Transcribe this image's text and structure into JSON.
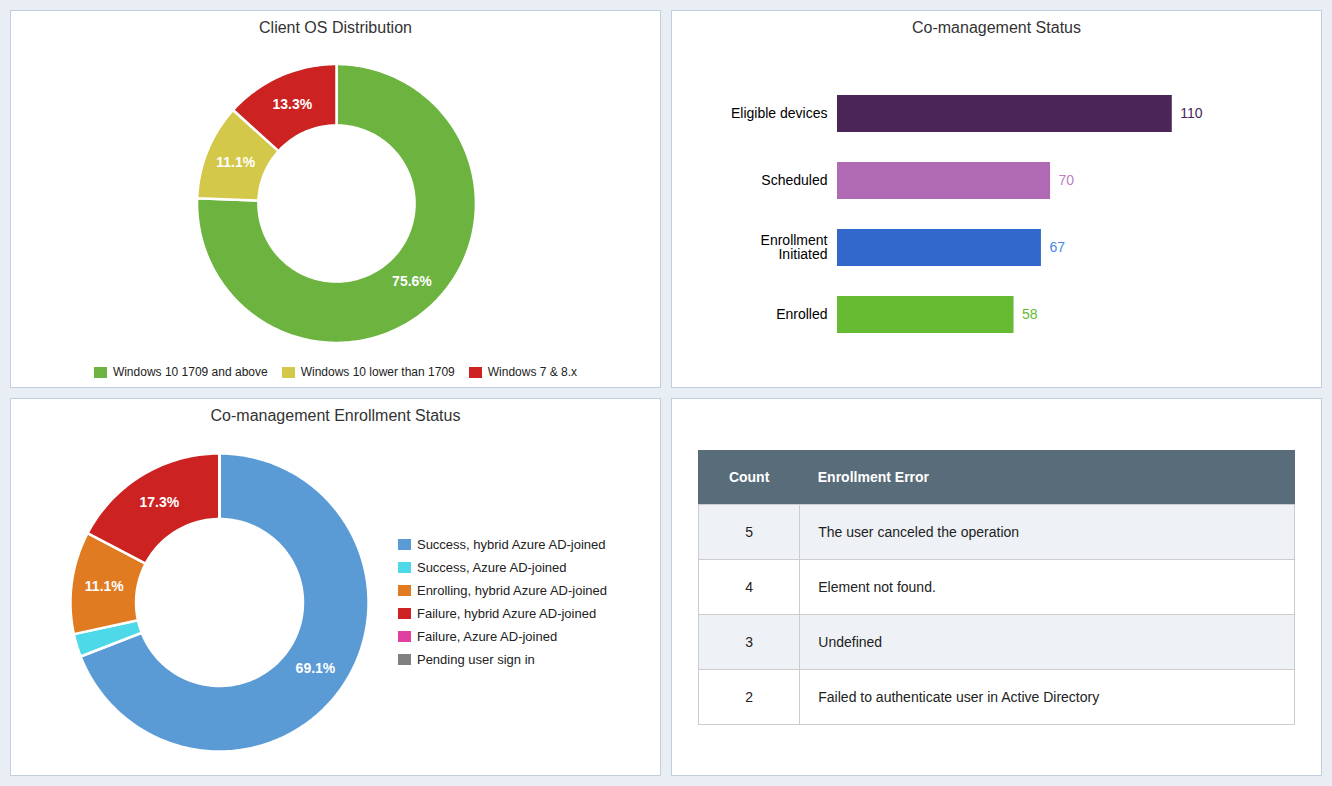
{
  "chart_data": [
    {
      "type": "donut",
      "title": "Client OS Distribution",
      "categories": [
        "Windows 10 1709 and above",
        "Windows 10 lower than 1709",
        "Windows 7 & 8.x"
      ],
      "values": [
        75.6,
        11.1,
        13.3
      ],
      "colors": [
        "#6db33f",
        "#d4c84a",
        "#cc2222"
      ],
      "value_labels": [
        "75.6%",
        "11.1%",
        "13.3%"
      ],
      "data_labels": true,
      "legend": "bottom"
    },
    {
      "type": "bar",
      "title": "Co-management Status",
      "orientation": "horizontal",
      "categories": [
        "Eligible devices",
        "Scheduled",
        "Enrollment\nInitiated",
        "Enrolled"
      ],
      "values": [
        110,
        70,
        67,
        58
      ],
      "colors": [
        "#4b2558",
        "#b06ab3",
        "#3267cc",
        "#66bb33"
      ],
      "value_label_colors": [
        "#4b2558",
        "#c080c0",
        "#4488ee",
        "#66bb33"
      ],
      "data_labels": true,
      "xlim": [
        0,
        138
      ],
      "tick_labels": "y",
      "grid": false
    },
    {
      "type": "donut",
      "title": "Co-management Enrollment Status",
      "categories": [
        "Success, hybrid Azure AD-joined",
        "Success, Azure AD-joined",
        "Enrolling, hybrid Azure AD-joined",
        "Failure, hybrid Azure AD-joined",
        "Failure, Azure AD-joined",
        "Pending user sign in"
      ],
      "values": [
        69.1,
        2.5,
        11.1,
        17.3,
        0.0,
        0.0
      ],
      "colors": [
        "#5b9bd5",
        "#4dd9e8",
        "#e07b22",
        "#cc2222",
        "#e040a0",
        "#808080"
      ],
      "value_labels": [
        "69.1%",
        null,
        "11.1%",
        "17.3%",
        null,
        null
      ],
      "data_labels": true,
      "legend": "right"
    },
    {
      "type": "table",
      "columns": [
        "Count",
        "Enrollment Error"
      ],
      "rows": [
        [
          5,
          "The user canceled the operation"
        ],
        [
          4,
          "Element not found."
        ],
        [
          3,
          "Undefined"
        ],
        [
          2,
          "Failed to authenticate user in Active Directory"
        ]
      ]
    }
  ]
}
